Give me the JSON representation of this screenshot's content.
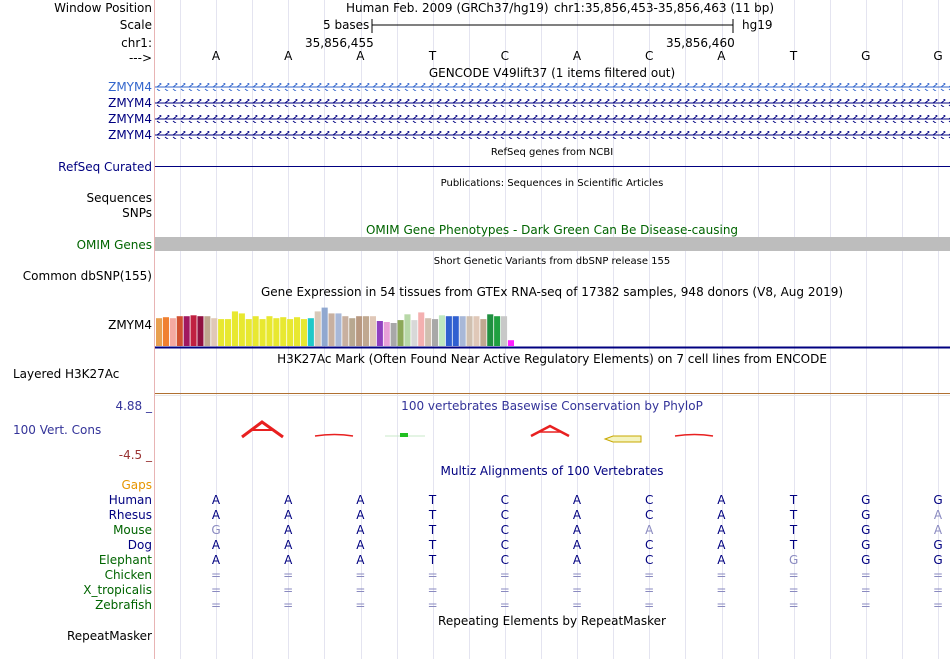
{
  "header": {
    "window_position_label": "Window Position",
    "scale_label": "Scale",
    "chrom_label": "chr1:",
    "arrow_label": "--->",
    "assembly": "Human Feb. 2009 (GRCh37/hg19)",
    "position": "chr1:35,856,453-35,856,463 (11 bp)",
    "scale_bases": "5 bases",
    "db": "hg19",
    "coord_left": "35,856,455",
    "coord_right": "35,856,460"
  },
  "reference_bases": [
    "A",
    "A",
    "A",
    "T",
    "C",
    "A",
    "C",
    "A",
    "T",
    "G",
    "G"
  ],
  "gencode": {
    "title": "GENCODE V49lift37 (1 items filtered out)",
    "genes": [
      "ZMYM4",
      "ZMYM4",
      "ZMYM4",
      "ZMYM4"
    ]
  },
  "refseq": {
    "label": "RefSeq Curated",
    "title": "RefSeq genes from NCBI"
  },
  "publications": {
    "title": "Publications: Sequences in Scientific Articles",
    "label": "Sequences"
  },
  "snps_label": "SNPs",
  "omim": {
    "title": "OMIM Gene Phenotypes - Dark Green Can Be Disease-causing",
    "label": "OMIM Genes"
  },
  "dbsnp": {
    "title": "Short Genetic Variants from dbSNP release 155",
    "label": "Common dbSNP(155)"
  },
  "gtex": {
    "title": "Gene Expression in 54 tissues from GTEx RNA-seq of 17382 samples, 948 donors (V8, Aug 2019)",
    "label": "ZMYM4",
    "bars": [
      {
        "h": 0.58,
        "c": "#e8a050"
      },
      {
        "h": 0.6,
        "c": "#f08030"
      },
      {
        "h": 0.58,
        "c": "#f4a8a0"
      },
      {
        "h": 0.62,
        "c": "#d05030"
      },
      {
        "h": 0.62,
        "c": "#a01860"
      },
      {
        "h": 0.64,
        "c": "#c02040"
      },
      {
        "h": 0.62,
        "c": "#901040"
      },
      {
        "h": 0.62,
        "c": "#c0a890"
      },
      {
        "h": 0.58,
        "c": "#e0c8b8"
      },
      {
        "h": 0.56,
        "c": "#e8e830"
      },
      {
        "h": 0.56,
        "c": "#e8e830"
      },
      {
        "h": 0.72,
        "c": "#e8e830"
      },
      {
        "h": 0.68,
        "c": "#e8e830"
      },
      {
        "h": 0.56,
        "c": "#e8e830"
      },
      {
        "h": 0.62,
        "c": "#e8e830"
      },
      {
        "h": 0.56,
        "c": "#e8e830"
      },
      {
        "h": 0.62,
        "c": "#e8e830"
      },
      {
        "h": 0.58,
        "c": "#e8e830"
      },
      {
        "h": 0.6,
        "c": "#e8e830"
      },
      {
        "h": 0.56,
        "c": "#e8e830"
      },
      {
        "h": 0.6,
        "c": "#e8e830"
      },
      {
        "h": 0.56,
        "c": "#e8e830"
      },
      {
        "h": 0.58,
        "c": "#20c8c8"
      },
      {
        "h": 0.72,
        "c": "#d8c8b8"
      },
      {
        "h": 0.8,
        "c": "#90a8d0"
      },
      {
        "h": 0.68,
        "c": "#c8b0a0"
      },
      {
        "h": 0.68,
        "c": "#a8b8d8"
      },
      {
        "h": 0.62,
        "c": "#c8b0a0"
      },
      {
        "h": 0.58,
        "c": "#b8a890"
      },
      {
        "h": 0.62,
        "c": "#b89880"
      },
      {
        "h": 0.62,
        "c": "#c0a890"
      },
      {
        "h": 0.62,
        "c": "#e0c8b8"
      },
      {
        "h": 0.52,
        "c": "#9040c0"
      },
      {
        "h": 0.5,
        "c": "#e8a0d8"
      },
      {
        "h": 0.48,
        "c": "#a8a8a8"
      },
      {
        "h": 0.54,
        "c": "#8ca858"
      },
      {
        "h": 0.66,
        "c": "#b8d8a8"
      },
      {
        "h": 0.54,
        "c": "#d8d8d8"
      },
      {
        "h": 0.7,
        "c": "#f4b0b0"
      },
      {
        "h": 0.58,
        "c": "#d0c0b0"
      },
      {
        "h": 0.56,
        "c": "#a8a8a8"
      },
      {
        "h": 0.64,
        "c": "#c0e8c0"
      },
      {
        "h": 0.62,
        "c": "#3060d0"
      },
      {
        "h": 0.62,
        "c": "#3060d0"
      },
      {
        "h": 0.62,
        "c": "#a8b8d8"
      },
      {
        "h": 0.62,
        "c": "#d0c0b0"
      },
      {
        "h": 0.62,
        "c": "#e0c8b8"
      },
      {
        "h": 0.56,
        "c": "#c0a890"
      },
      {
        "h": 0.66,
        "c": "#209040"
      },
      {
        "h": 0.62,
        "c": "#20a040"
      },
      {
        "h": 0.62,
        "c": "#c8c8c8"
      },
      {
        "h": 0.12,
        "c": "#ff20ff"
      }
    ]
  },
  "h3k27ac": {
    "title": "H3K27Ac Mark (Often Found Near Active Regulatory Elements) on 7 cell lines from ENCODE",
    "label": "Layered H3K27Ac"
  },
  "conservation": {
    "title": "100 vertebrates Basewise Conservation by PhyloP",
    "label": "100 Vert. Cons",
    "max": "4.88 _",
    "min": "-4.5 _"
  },
  "multiz": {
    "title": "Multiz Alignments of 100 Vertebrates",
    "gaps_label": "Gaps",
    "species": [
      {
        "name": "Human",
        "color": "#000080",
        "bases": [
          "A",
          "A",
          "A",
          "T",
          "C",
          "A",
          "C",
          "A",
          "T",
          "G",
          "G"
        ]
      },
      {
        "name": "Rhesus",
        "color": "#000080",
        "bases": [
          "A",
          "A",
          "A",
          "T",
          "C",
          "A",
          "C",
          "A",
          "T",
          "G",
          "A"
        ]
      },
      {
        "name": "Mouse",
        "color": "#006400",
        "bases": [
          "G",
          "A",
          "A",
          "T",
          "C",
          "A",
          "A",
          "A",
          "T",
          "G",
          "A"
        ]
      },
      {
        "name": "Dog",
        "color": "#000080",
        "bases": [
          "A",
          "A",
          "A",
          "T",
          "C",
          "A",
          "C",
          "A",
          "T",
          "G",
          "G"
        ]
      },
      {
        "name": "Elephant",
        "color": "#006400",
        "bases": [
          "A",
          "A",
          "A",
          "T",
          "C",
          "A",
          "C",
          "A",
          "G",
          "G",
          "G"
        ]
      },
      {
        "name": "Chicken",
        "color": "#006400",
        "bases": [
          "=",
          "=",
          "=",
          "=",
          "=",
          "=",
          "=",
          "=",
          "=",
          "=",
          "="
        ]
      },
      {
        "name": "X_tropicalis",
        "color": "#006400",
        "bases": [
          "=",
          "=",
          "=",
          "=",
          "=",
          "=",
          "=",
          "=",
          "=",
          "=",
          "="
        ]
      },
      {
        "name": "Zebrafish",
        "color": "#006400",
        "bases": [
          "=",
          "=",
          "=",
          "=",
          "=",
          "=",
          "=",
          "=",
          "=",
          "=",
          "="
        ]
      }
    ],
    "dim": [
      [],
      [
        10
      ],
      [
        0,
        6,
        10
      ],
      [],
      [
        8
      ],
      [
        0,
        1,
        2,
        3,
        4,
        5,
        6,
        7,
        8,
        9,
        10
      ],
      [
        0,
        1,
        2,
        3,
        4,
        5,
        6,
        7,
        8,
        9,
        10
      ],
      [
        0,
        1,
        2,
        3,
        4,
        5,
        6,
        7,
        8,
        9,
        10
      ]
    ]
  },
  "repeatmasker": {
    "title": "Repeating Elements by RepeatMasker",
    "label": "RepeatMasker"
  }
}
